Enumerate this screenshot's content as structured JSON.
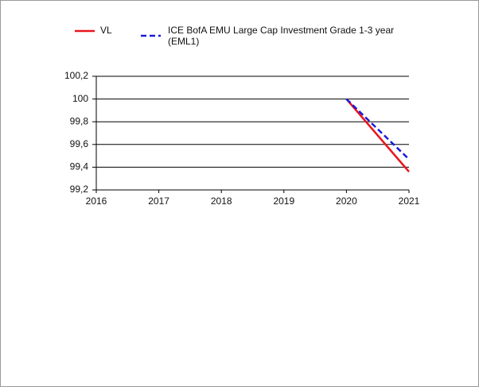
{
  "chart_data": {
    "type": "line",
    "x": [
      2020,
      2021
    ],
    "series": [
      {
        "name": "VL",
        "color": "#e8141c",
        "dash": false,
        "values": [
          100,
          99.36
        ]
      },
      {
        "name": "ICE BofA EMU Large Cap Investment Grade 1-3 year (EML1)",
        "color": "#1a1adb",
        "dash": true,
        "values": [
          100,
          99.47
        ]
      }
    ],
    "xlim": [
      2016,
      2021
    ],
    "xticks": [
      2016,
      2017,
      2018,
      2019,
      2020,
      2021
    ],
    "ylim": [
      99.2,
      100.2
    ],
    "yticks": [
      {
        "value": 99.2,
        "label": "99,2"
      },
      {
        "value": 99.4,
        "label": "99,4"
      },
      {
        "value": 99.6,
        "label": "99,6"
      },
      {
        "value": 99.8,
        "label": "99,8"
      },
      100,
      {
        "value": 100.2,
        "label": "100,2"
      }
    ],
    "grid": true
  }
}
